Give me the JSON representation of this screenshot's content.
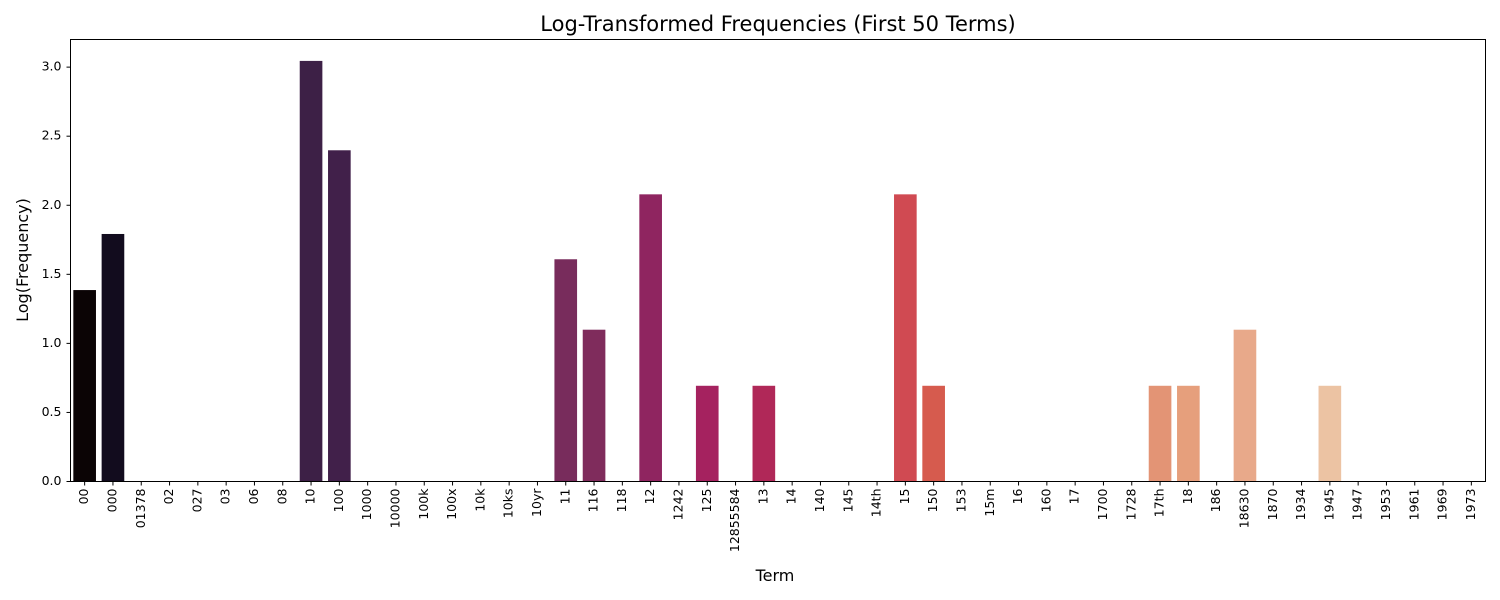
{
  "chart_data": {
    "type": "bar",
    "title": "Log-Transformed Frequencies (First 50 Terms)",
    "xlabel": "Term",
    "ylabel": "Log(Frequency)",
    "ylim": [
      0,
      3.2
    ],
    "yticks": [
      "0.0",
      "0.5",
      "1.0",
      "1.5",
      "2.0",
      "2.5",
      "3.0"
    ],
    "grid": false,
    "legend": "none",
    "palette": "rocket",
    "categories": [
      "00",
      "000",
      "01378",
      "02",
      "027",
      "03",
      "06",
      "08",
      "10",
      "100",
      "1000",
      "10000",
      "100k",
      "100x",
      "10k",
      "10ks",
      "10yr",
      "11",
      "116",
      "118",
      "12",
      "1242",
      "125",
      "12855584",
      "13",
      "14",
      "140",
      "145",
      "14th",
      "15",
      "150",
      "153",
      "15m",
      "16",
      "160",
      "17",
      "1700",
      "1728",
      "17th",
      "18",
      "186",
      "18630",
      "1870",
      "1934",
      "1945",
      "1947",
      "1953",
      "1961",
      "1969",
      "1973"
    ],
    "values": [
      1.386,
      1.792,
      0,
      0,
      0,
      0,
      0,
      0,
      3.045,
      2.398,
      0,
      0,
      0,
      0,
      0,
      0,
      0,
      1.609,
      1.099,
      0,
      2.079,
      0,
      0.693,
      0,
      0.693,
      0,
      0,
      0,
      0,
      2.079,
      0.693,
      0,
      0,
      0,
      0,
      0,
      0,
      0,
      0.693,
      0.693,
      0,
      1.099,
      0,
      0,
      0.693,
      0,
      0,
      0,
      0,
      0
    ],
    "colors": [
      "#0b0405",
      "#120c1e",
      "#181431",
      "#1f1a3d",
      "#251f46",
      "#2c2250",
      "#32245a",
      "#382564",
      "#3d2046",
      "#41204a",
      "#47214d",
      "#4e2151",
      "#552255",
      "#5d2359",
      "#64245c",
      "#6b2560",
      "#722663",
      "#782c5c",
      "#7f2c5c",
      "#86295e",
      "#8f2560",
      "#9a2460",
      "#a5225f",
      "#b0225c",
      "#b02858",
      "#b92c58",
      "#c23054",
      "#c93350",
      "#d0394e",
      "#d04a52",
      "#d65b4e",
      "#db6350",
      "#de6a52",
      "#e07354",
      "#e27b58",
      "#e3835e",
      "#e48b64",
      "#e5916a",
      "#e39475",
      "#e69f7c",
      "#e7a47f",
      "#e8a98a",
      "#ebae8e",
      "#ecb594",
      "#ecc3a3",
      "#eecbac",
      "#f0d2b4",
      "#f2d9bd",
      "#f4e0c6",
      "#f6e8d0"
    ]
  }
}
